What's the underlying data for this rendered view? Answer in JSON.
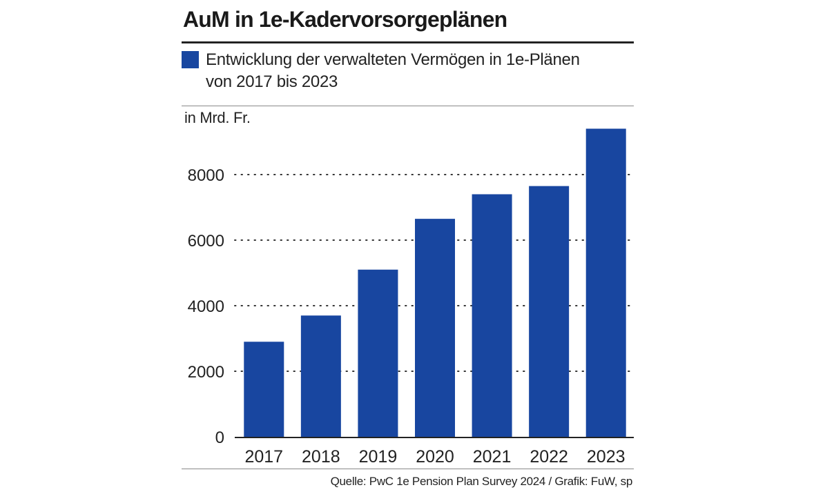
{
  "header": {
    "title": "AuM in 1e-Kadervorsorgeplänen",
    "legend_line1": "Entwicklung der verwalteten Vermögen in 1e-Plänen",
    "legend_line2": "von 2017 bis 2023",
    "unit": "in Mrd. Fr."
  },
  "footer": {
    "source": "Quelle: PwC 1e Pension Plan Survey 2024 / Grafik: FuW, sp"
  },
  "colors": {
    "bar": "#1846a0",
    "grid": "#333333"
  },
  "chart_data": {
    "type": "bar",
    "title": "AuM in 1e-Kadervorsorgeplänen",
    "ylabel": "in Mrd. Fr.",
    "xlabel": "",
    "categories": [
      "2017",
      "2018",
      "2019",
      "2020",
      "2021",
      "2022",
      "2023"
    ],
    "series": [
      {
        "name": "Entwicklung der verwalteten Vermögen in 1e-Plänen",
        "values": [
          2900,
          3700,
          5100,
          6650,
          7400,
          7650,
          9400
        ]
      }
    ],
    "yticks": [
      0,
      2000,
      4000,
      6000,
      8000
    ],
    "ytick_labels": [
      "0",
      "2000",
      "4000",
      "6000",
      "8000"
    ],
    "ylim": [
      0,
      10000
    ],
    "grid": "dotted horizontal"
  }
}
